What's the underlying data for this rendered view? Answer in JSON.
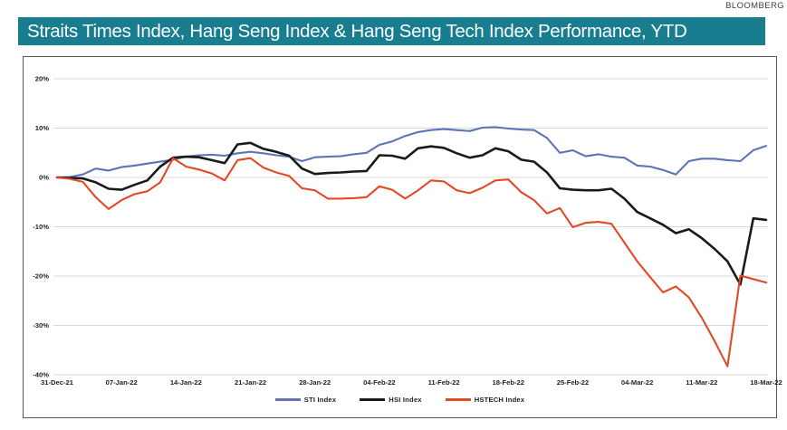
{
  "header": {
    "source": "BLOOMBERG",
    "title": "Straits Times Index, Hang Seng Index & Hang Seng Tech Index Performance, YTD"
  },
  "colors": {
    "title_bar_bg": "#177D8F",
    "title_text": "#FFFFFF",
    "panel_border": "#595959",
    "gridline": "#D9D9D9",
    "axis_text": "#1F1F1F",
    "sti": "#5E74B4",
    "hsi": "#1A1A1A",
    "hstech": "#E04A26"
  },
  "chart_data": {
    "type": "line",
    "title": "Straits Times Index, Hang Seng Index & Hang Seng Tech Index Performance, YTD",
    "xlabel": "",
    "ylabel": "",
    "ylim": [
      -40,
      20
    ],
    "y_ticks": [
      "20%",
      "10%",
      "0%",
      "-10%",
      "-20%",
      "-30%",
      "-40%"
    ],
    "grid": "horizontal",
    "legend_position": "bottom",
    "x_tick_labels": [
      "31-Dec-21",
      "07-Jan-22",
      "14-Jan-22",
      "21-Jan-22",
      "28-Jan-22",
      "04-Feb-22",
      "11-Feb-22",
      "18-Feb-22",
      "25-Feb-22",
      "04-Mar-22",
      "11-Mar-22",
      "18-Mar-22"
    ],
    "points_per_tick": 5,
    "unit": "percent YTD change",
    "series": [
      {
        "name": "STI Index",
        "color": "#5E74B4",
        "values": [
          0,
          0.1,
          0.6,
          1.8,
          1.4,
          2.1,
          2.4,
          2.8,
          3.2,
          3.6,
          4.2,
          4.5,
          4.6,
          4.4,
          4.9,
          5.2,
          4.9,
          4.5,
          4.2,
          3.3,
          4.1,
          4.2,
          4.3,
          4.7,
          5.0,
          6.6,
          7.3,
          8.4,
          9.2,
          9.6,
          9.8,
          9.6,
          9.4,
          10.1,
          10.2,
          9.9,
          9.7,
          9.6,
          8.0,
          5.0,
          5.5,
          4.3,
          4.7,
          4.2,
          4.0,
          2.4,
          2.2,
          1.5,
          0.6,
          3.3,
          3.8,
          3.8,
          3.5,
          3.3,
          5.5,
          6.4
        ]
      },
      {
        "name": "HSI Index",
        "color": "#1A1A1A",
        "values": [
          0,
          -0.1,
          -0.2,
          -1.0,
          -2.3,
          -2.5,
          -1.5,
          -0.6,
          2.2,
          4.0,
          4.2,
          4.1,
          3.5,
          2.9,
          6.7,
          7.0,
          5.8,
          5.2,
          4.4,
          1.8,
          0.7,
          0.9,
          1.0,
          1.2,
          1.3,
          4.5,
          4.4,
          3.8,
          5.9,
          6.3,
          6.0,
          4.9,
          4.0,
          4.5,
          5.9,
          5.3,
          3.6,
          3.2,
          1.0,
          -2.2,
          -2.5,
          -2.6,
          -2.6,
          -2.3,
          -4.3,
          -7.0,
          -8.3,
          -9.6,
          -11.3,
          -10.5,
          -12.3,
          -14.5,
          -17.0,
          -21.7,
          -8.3,
          -8.6
        ]
      },
      {
        "name": "HSTECH Index",
        "color": "#E04A26",
        "values": [
          0,
          -0.3,
          -0.9,
          -4.0,
          -6.4,
          -4.6,
          -3.4,
          -2.8,
          -1.0,
          3.9,
          2.2,
          1.6,
          0.8,
          -0.6,
          3.5,
          3.9,
          2.0,
          1.0,
          0.3,
          -2.2,
          -2.6,
          -4.3,
          -4.3,
          -4.2,
          -4.0,
          -1.8,
          -2.5,
          -4.3,
          -2.6,
          -0.6,
          -0.8,
          -2.6,
          -3.2,
          -2.1,
          -0.6,
          -0.4,
          -3.0,
          -4.6,
          -7.3,
          -6.2,
          -10.1,
          -9.2,
          -9.0,
          -9.4,
          -13.2,
          -17.0,
          -20.2,
          -23.3,
          -22.1,
          -24.3,
          -28.4,
          -33.2,
          -38.3,
          -19.9,
          -20.6,
          -21.3
        ]
      }
    ]
  }
}
